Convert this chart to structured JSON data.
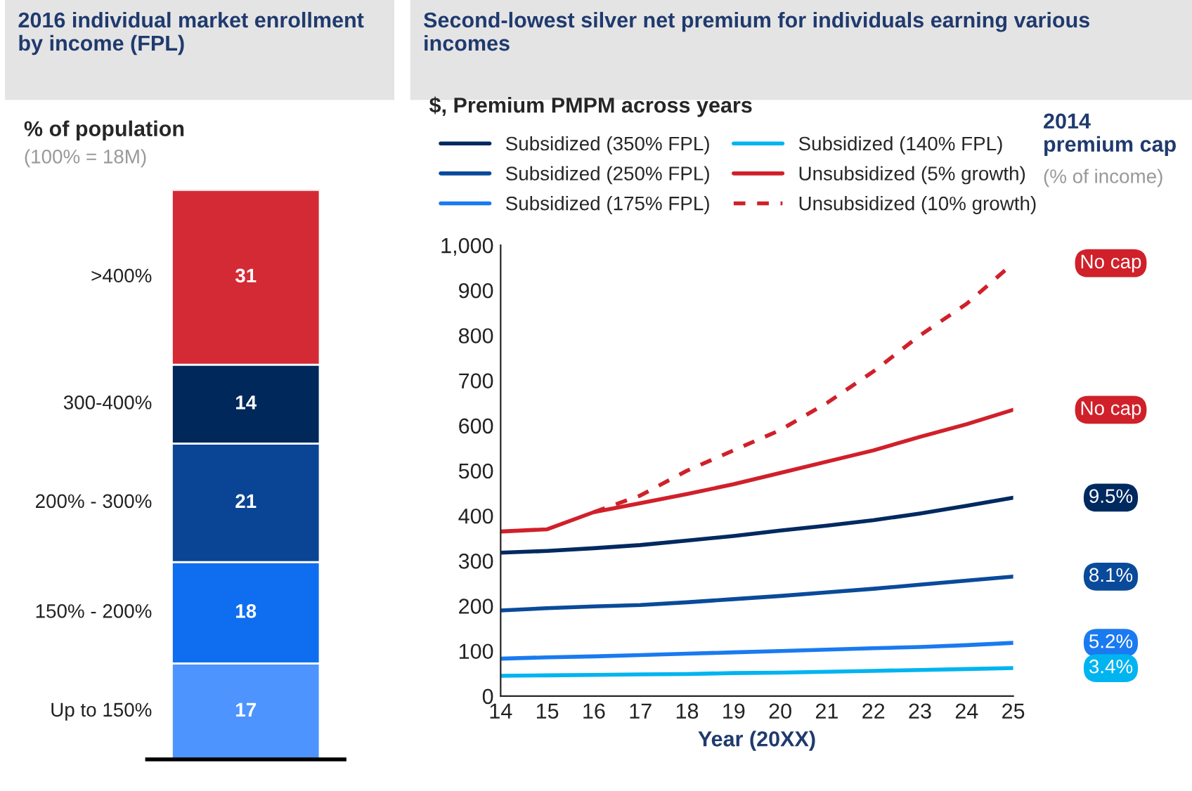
{
  "chart_data": [
    {
      "type": "bar",
      "stacked": true,
      "title": "2016 individual market enrollment by income (FPL)",
      "ylabel": "% of population",
      "annotations": [
        "(100% = 18M)"
      ],
      "categories": [
        null
      ],
      "data_labels": true,
      "legend": false,
      "series": [
        {
          "name": "Up to 150%",
          "color": "#4d94ff",
          "values": [
            17
          ]
        },
        {
          "name": "150% - 200%",
          "color": "#0f6ef0",
          "values": [
            18
          ]
        },
        {
          "name": "200% - 300%",
          "color": "#0a4494",
          "values": [
            21
          ]
        },
        {
          "name": "300-400%",
          "color": "#00285a",
          "values": [
            14
          ]
        },
        {
          "name": ">400%",
          "color": "#d42a35",
          "values": [
            31
          ]
        }
      ]
    },
    {
      "type": "line",
      "title": "Second-lowest silver net premium for individuals earning various incomes",
      "subtitle": "$, Premium PMPM across years",
      "xlabel": "Year (20XX)",
      "legend": "top",
      "x": [
        14,
        15,
        16,
        17,
        18,
        19,
        20,
        21,
        22,
        23,
        24,
        25
      ],
      "xlim": [
        14,
        25
      ],
      "xticks": [
        14,
        15,
        16,
        17,
        18,
        19,
        20,
        21,
        22,
        23,
        24,
        25
      ],
      "ylim": [
        0,
        1000
      ],
      "yticks": [
        0,
        100,
        200,
        300,
        400,
        500,
        600,
        700,
        800,
        900,
        {
          "value": 1000,
          "label": "1,000"
        }
      ],
      "series": [
        {
          "name": "Subsidized (350% FPL)",
          "color": "#002960",
          "values": [
            318,
            322,
            328,
            335,
            345,
            355,
            367,
            378,
            390,
            405,
            422,
            440
          ]
        },
        {
          "name": "Subsidized (250% FPL)",
          "color": "#0a4a9a",
          "values": [
            190,
            195,
            199,
            202,
            208,
            215,
            222,
            230,
            238,
            247,
            256,
            265
          ]
        },
        {
          "name": "Subsidized (175% FPL)",
          "color": "#1a7af0",
          "values": [
            83,
            86,
            88,
            91,
            94,
            97,
            100,
            103,
            106,
            109,
            113,
            118
          ]
        },
        {
          "name": "Subsidized (140% FPL)",
          "color": "#00b4f0",
          "values": [
            45,
            46,
            47,
            48,
            49,
            51,
            52,
            54,
            56,
            58,
            60,
            62
          ]
        },
        {
          "name": "Unsubsidized (5% growth)",
          "color": "#d0202a",
          "values": [
            365,
            370,
            408,
            428,
            448,
            470,
            495,
            520,
            545,
            575,
            603,
            635
          ]
        },
        {
          "name": "Unsubsidized (10% growth)",
          "color": "#d0202a",
          "line_style": "dashed",
          "values": [
            null,
            null,
            408,
            445,
            500,
            545,
            590,
            650,
            720,
            800,
            870,
            960
          ]
        }
      ],
      "annotations": [
        "2014 premium cap",
        "(% of income)",
        "9.5%",
        "8.1%",
        "5.2%",
        "3.4%",
        "No cap",
        "No cap"
      ]
    }
  ]
}
